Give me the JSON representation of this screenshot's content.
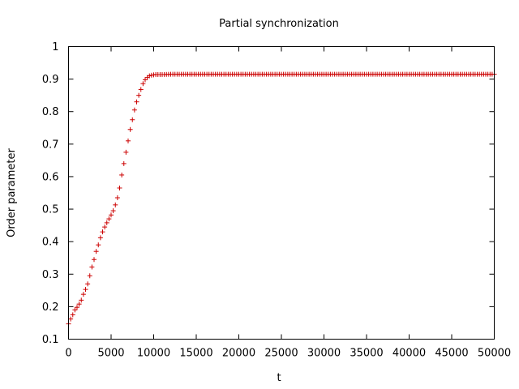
{
  "chart_data": {
    "type": "scatter",
    "title": "Partial synchronization",
    "xlabel": "t",
    "ylabel": "Order parameter",
    "xlim": [
      0,
      50000
    ],
    "ylim": [
      0.1,
      1
    ],
    "xticks": [
      0,
      5000,
      10000,
      15000,
      20000,
      25000,
      30000,
      35000,
      40000,
      45000,
      50000
    ],
    "xtick_labels": [
      "0",
      "5000",
      "10000",
      "15000",
      "20000",
      "25000",
      "30000",
      "35000",
      "40000",
      "45000",
      "50000"
    ],
    "yticks": [
      0.1,
      0.2,
      0.3,
      0.4,
      0.5,
      0.6,
      0.7,
      0.8,
      0.9,
      1
    ],
    "ytick_labels": [
      "0.1",
      "0.2",
      "0.3",
      "0.4",
      "0.5",
      "0.6",
      "0.7",
      "0.8",
      "0.9",
      "1"
    ],
    "grid": false,
    "marker": "+",
    "marker_color": "#cc0000",
    "series": [
      {
        "x": [
          0,
          250,
          500,
          750,
          1000,
          1250,
          1500,
          1750,
          2000,
          2250,
          2500,
          2750,
          3000,
          3250,
          3500,
          3750,
          4000,
          4250,
          4500,
          4750,
          5000,
          5250,
          5500,
          5750,
          6000,
          6250,
          6500,
          6750,
          7000,
          7250,
          7500,
          7750,
          8000,
          8250,
          8500,
          8750,
          9000,
          9250,
          9500,
          9750,
          10000,
          10250,
          10500,
          11000,
          12000,
          14000,
          16000,
          20000,
          25000,
          30000,
          35000,
          40000,
          45000,
          50000
        ],
        "y": [
          0.147,
          0.162,
          0.175,
          0.19,
          0.198,
          0.208,
          0.22,
          0.238,
          0.253,
          0.27,
          0.295,
          0.322,
          0.345,
          0.37,
          0.39,
          0.412,
          0.43,
          0.445,
          0.458,
          0.47,
          0.482,
          0.495,
          0.513,
          0.535,
          0.565,
          0.605,
          0.64,
          0.675,
          0.71,
          0.745,
          0.775,
          0.805,
          0.83,
          0.85,
          0.868,
          0.886,
          0.898,
          0.905,
          0.91,
          0.912,
          0.913,
          0.914,
          0.914,
          0.914,
          0.915,
          0.915,
          0.915,
          0.915,
          0.915,
          0.915,
          0.915,
          0.915,
          0.915,
          0.915
        ]
      }
    ]
  }
}
